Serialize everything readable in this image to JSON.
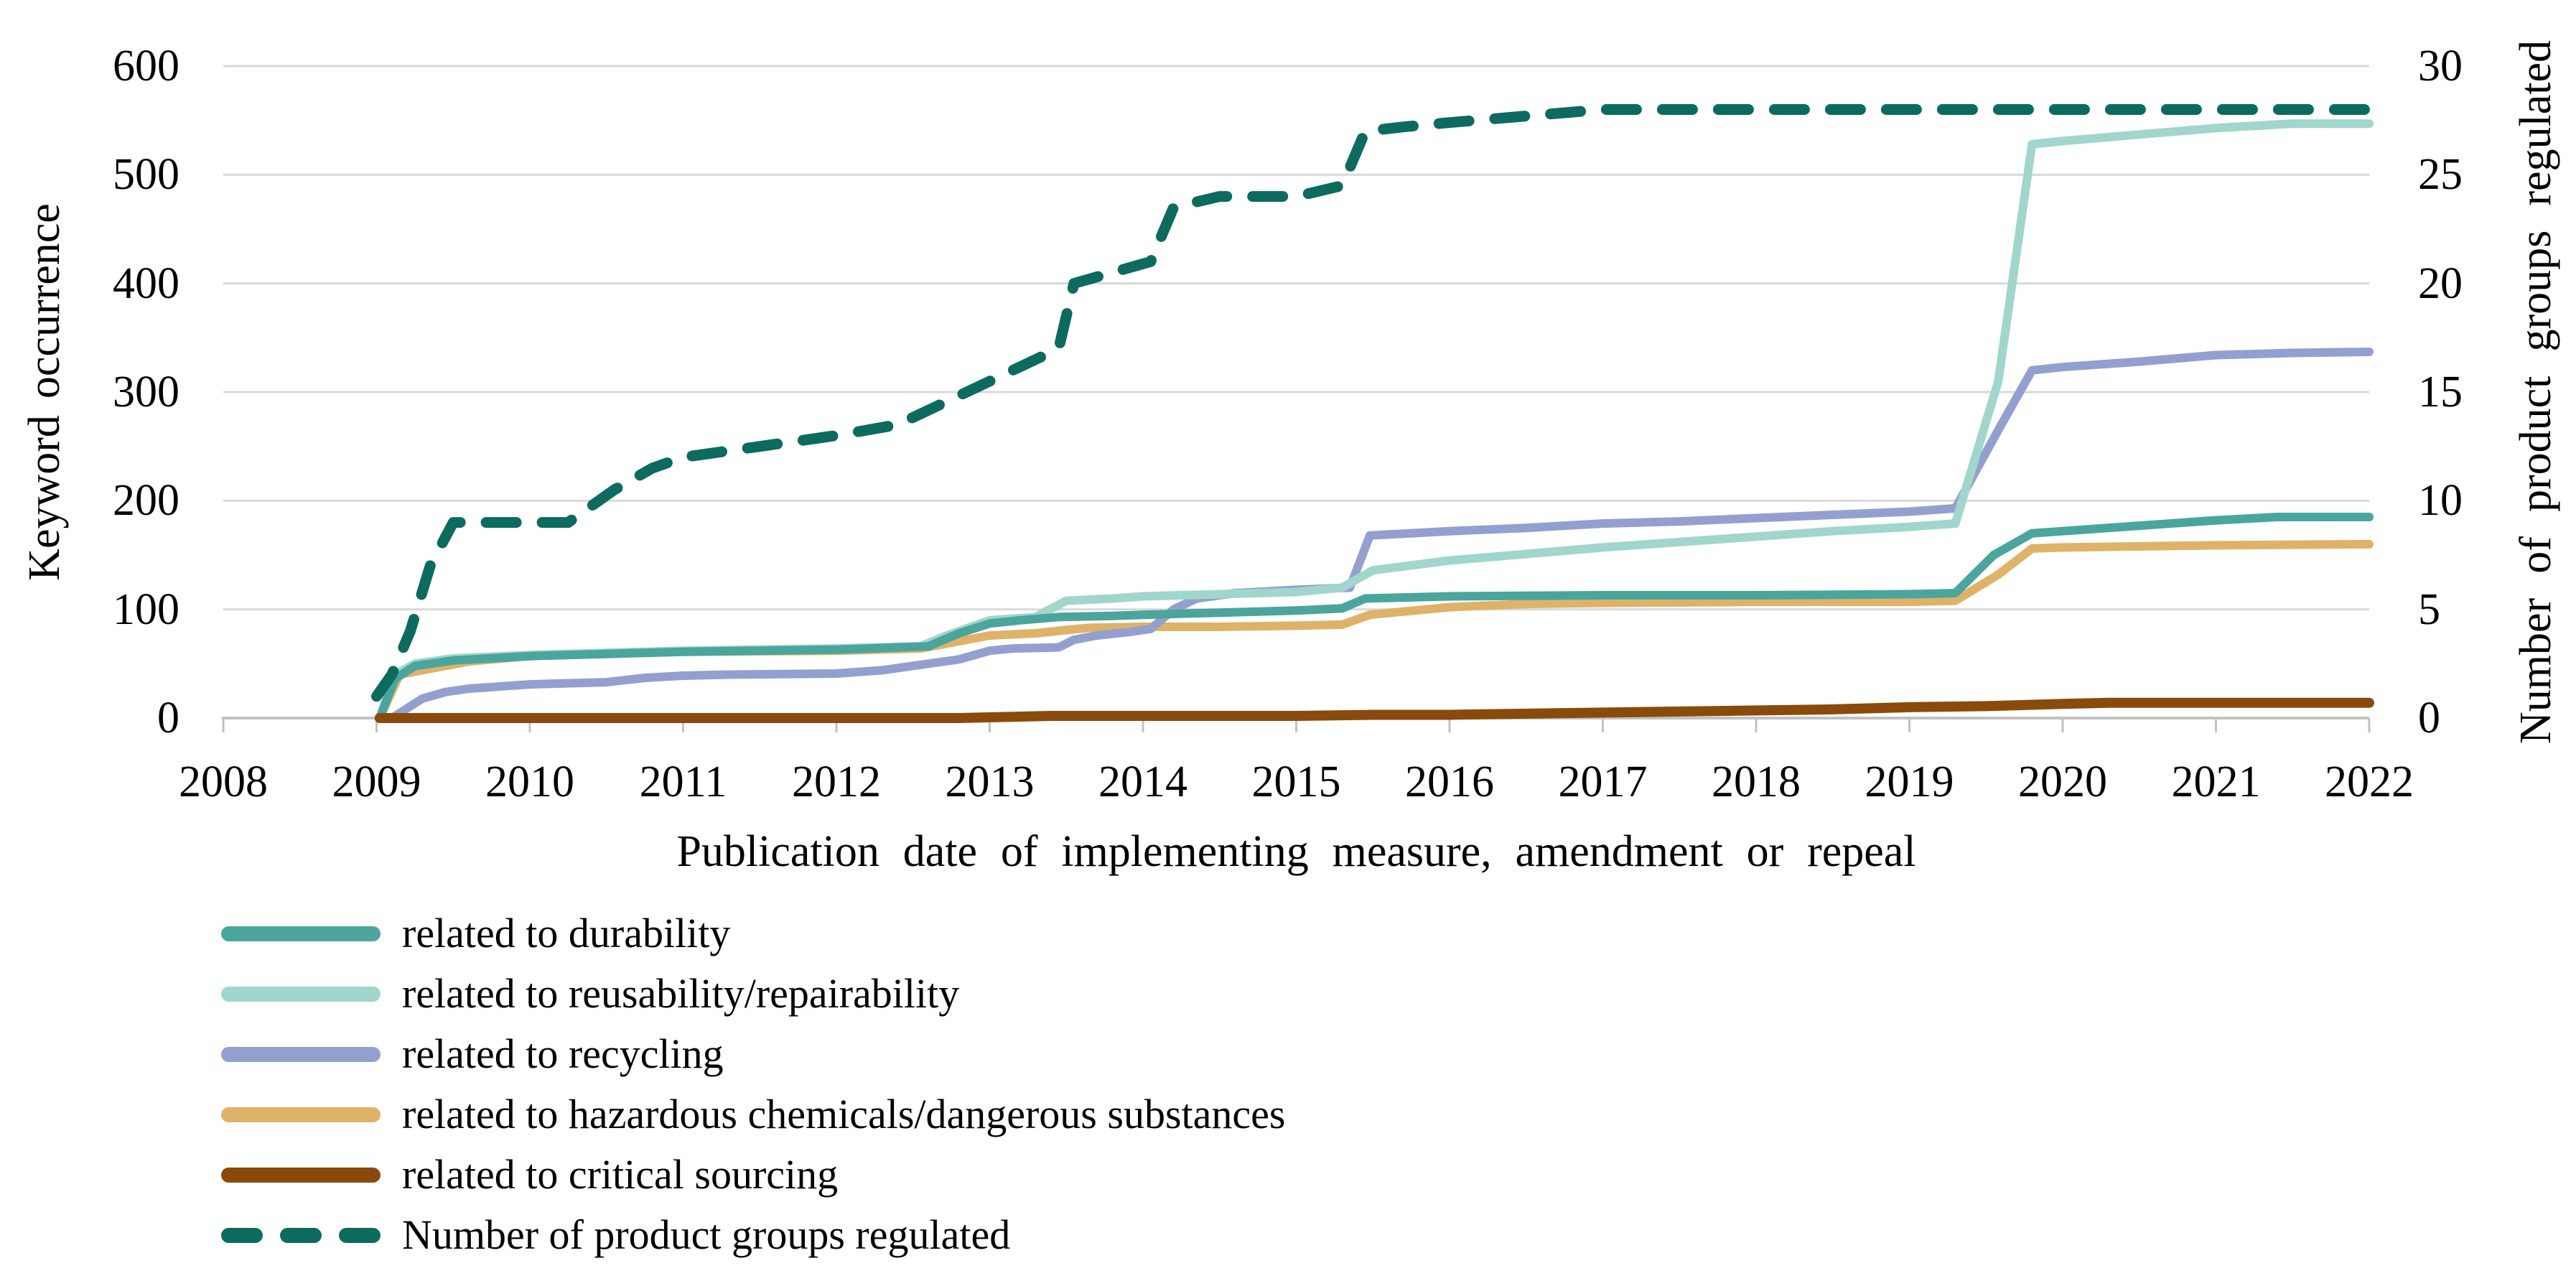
{
  "chart_data": {
    "type": "line",
    "title": "",
    "x_axis": {
      "label": "Publication date of implementing measure, amendment or repeal",
      "ticks": [
        "2008",
        "2009",
        "2010",
        "2011",
        "2012",
        "2013",
        "2014",
        "2015",
        "2016",
        "2017",
        "2018",
        "2019",
        "2020",
        "2021",
        "2022"
      ],
      "range": [
        2008,
        2022
      ]
    },
    "y_axis_left": {
      "label": "Keyword occurrence",
      "ticks": [
        "0",
        "100",
        "200",
        "300",
        "400",
        "500",
        "600"
      ],
      "range": [
        0,
        600
      ]
    },
    "y_axis_right": {
      "label": "Number of product groups regulated",
      "ticks": [
        "0",
        "5",
        "10",
        "15",
        "20",
        "25",
        "30"
      ],
      "range": [
        0,
        30
      ]
    },
    "grid": {
      "gridline_color": "#d9d9d9",
      "axis_line_color": "#c2c2c2",
      "tick_color": "#c2c2c2"
    },
    "legend_position": "bottom-left",
    "series": [
      {
        "name": "related to durability",
        "color": "#4aa59d",
        "axis": "left",
        "style": "solid",
        "points": [
          [
            2009.02,
            0
          ],
          [
            2009.12,
            36
          ],
          [
            2009.25,
            48
          ],
          [
            2009.5,
            53
          ],
          [
            2010,
            57
          ],
          [
            2010.5,
            59
          ],
          [
            2011,
            61
          ],
          [
            2012,
            63
          ],
          [
            2012.6,
            66
          ],
          [
            2012.8,
            78
          ],
          [
            2013.0,
            87
          ],
          [
            2013.2,
            90
          ],
          [
            2013.45,
            93
          ],
          [
            2013.8,
            94
          ],
          [
            2014,
            95
          ],
          [
            2014.5,
            97
          ],
          [
            2015,
            99
          ],
          [
            2015.3,
            101
          ],
          [
            2015.45,
            110
          ],
          [
            2016,
            112
          ],
          [
            2017,
            113
          ],
          [
            2018,
            113
          ],
          [
            2019,
            114
          ],
          [
            2019.3,
            115
          ],
          [
            2019.55,
            150
          ],
          [
            2019.8,
            170
          ],
          [
            2020,
            172
          ],
          [
            2020.5,
            177
          ],
          [
            2021,
            182
          ],
          [
            2021.4,
            185
          ],
          [
            2022,
            185
          ]
        ]
      },
      {
        "name": "related to reusability/repairability",
        "color": "#a0d6cb",
        "axis": "left",
        "style": "solid",
        "points": [
          [
            2009.02,
            0
          ],
          [
            2009.12,
            40
          ],
          [
            2009.25,
            50
          ],
          [
            2009.5,
            55
          ],
          [
            2010,
            58
          ],
          [
            2010.5,
            60
          ],
          [
            2011,
            62
          ],
          [
            2012,
            64
          ],
          [
            2012.55,
            66
          ],
          [
            2012.7,
            75
          ],
          [
            2013.0,
            90
          ],
          [
            2013.3,
            93
          ],
          [
            2013.5,
            108
          ],
          [
            2013.8,
            110
          ],
          [
            2014,
            112
          ],
          [
            2014.5,
            114
          ],
          [
            2015,
            116
          ],
          [
            2015.3,
            120
          ],
          [
            2015.5,
            136
          ],
          [
            2016,
            145
          ],
          [
            2016.5,
            151
          ],
          [
            2017,
            157
          ],
          [
            2017.5,
            162
          ],
          [
            2018,
            167
          ],
          [
            2018.5,
            172
          ],
          [
            2019,
            176
          ],
          [
            2019.3,
            179
          ],
          [
            2019.58,
            310
          ],
          [
            2019.8,
            528
          ],
          [
            2020,
            531
          ],
          [
            2020.5,
            537
          ],
          [
            2021,
            543
          ],
          [
            2021.5,
            547
          ],
          [
            2022,
            547
          ]
        ]
      },
      {
        "name": "related to recycling",
        "color": "#93a0cf",
        "axis": "left",
        "style": "solid",
        "points": [
          [
            2009.1,
            0
          ],
          [
            2009.3,
            18
          ],
          [
            2009.45,
            24
          ],
          [
            2009.6,
            27
          ],
          [
            2010,
            31
          ],
          [
            2010.5,
            33
          ],
          [
            2010.75,
            37
          ],
          [
            2011,
            39
          ],
          [
            2011.3,
            40
          ],
          [
            2012,
            41
          ],
          [
            2012.3,
            44
          ],
          [
            2012.6,
            50
          ],
          [
            2012.8,
            54
          ],
          [
            2013.0,
            62
          ],
          [
            2013.15,
            64
          ],
          [
            2013.45,
            65
          ],
          [
            2013.55,
            72
          ],
          [
            2013.7,
            76
          ],
          [
            2013.9,
            79
          ],
          [
            2014.05,
            82
          ],
          [
            2014.2,
            100
          ],
          [
            2014.35,
            110
          ],
          [
            2014.6,
            115
          ],
          [
            2015,
            118
          ],
          [
            2015.35,
            120
          ],
          [
            2015.48,
            168
          ],
          [
            2016,
            172
          ],
          [
            2016.5,
            175
          ],
          [
            2017,
            179
          ],
          [
            2017.5,
            181
          ],
          [
            2018,
            184
          ],
          [
            2018.5,
            187
          ],
          [
            2019,
            190
          ],
          [
            2019.3,
            193
          ],
          [
            2019.58,
            265
          ],
          [
            2019.8,
            320
          ],
          [
            2020,
            323
          ],
          [
            2020.5,
            328
          ],
          [
            2021,
            334
          ],
          [
            2021.5,
            336
          ],
          [
            2022,
            337
          ]
        ]
      },
      {
        "name": "related to hazardous chemicals/dangerous substances",
        "color": "#dfb269",
        "axis": "left",
        "style": "solid",
        "points": [
          [
            2009.02,
            0
          ],
          [
            2009.15,
            40
          ],
          [
            2009.3,
            44
          ],
          [
            2009.6,
            52
          ],
          [
            2010,
            57
          ],
          [
            2010.5,
            60
          ],
          [
            2011,
            61
          ],
          [
            2012,
            62
          ],
          [
            2012.55,
            64
          ],
          [
            2012.7,
            68
          ],
          [
            2013.0,
            76
          ],
          [
            2013.3,
            78
          ],
          [
            2013.5,
            81
          ],
          [
            2013.65,
            83
          ],
          [
            2014,
            84
          ],
          [
            2014.5,
            84
          ],
          [
            2015,
            85
          ],
          [
            2015.3,
            86
          ],
          [
            2015.48,
            95
          ],
          [
            2016,
            102
          ],
          [
            2016.5,
            105
          ],
          [
            2017,
            106
          ],
          [
            2018,
            107
          ],
          [
            2019,
            107
          ],
          [
            2019.3,
            108
          ],
          [
            2019.58,
            132
          ],
          [
            2019.8,
            156
          ],
          [
            2020,
            157
          ],
          [
            2020.5,
            158
          ],
          [
            2021,
            159
          ],
          [
            2022,
            160
          ]
        ]
      },
      {
        "name": "related to critical sourcing",
        "color": "#8a4a0c",
        "axis": "left",
        "style": "solid",
        "points": [
          [
            2009.02,
            0
          ],
          [
            2012.8,
            0
          ],
          [
            2013.1,
            1
          ],
          [
            2013.4,
            2
          ],
          [
            2014,
            2
          ],
          [
            2015,
            2
          ],
          [
            2015.5,
            3
          ],
          [
            2016,
            3
          ],
          [
            2016.5,
            4
          ],
          [
            2017,
            5
          ],
          [
            2017.5,
            6
          ],
          [
            2018,
            7
          ],
          [
            2018.5,
            8
          ],
          [
            2019,
            10
          ],
          [
            2019.5,
            11
          ],
          [
            2020,
            13
          ],
          [
            2020.3,
            14
          ],
          [
            2021,
            14
          ],
          [
            2022,
            14
          ]
        ]
      },
      {
        "name": "Number of product groups regulated",
        "color": "#0c6b5e",
        "axis": "right",
        "style": "dashed",
        "points": [
          [
            2009.0,
            1
          ],
          [
            2009.1,
            2
          ],
          [
            2009.22,
            4
          ],
          [
            2009.35,
            7
          ],
          [
            2009.5,
            9
          ],
          [
            2010.25,
            9
          ],
          [
            2010.55,
            10.5
          ],
          [
            2010.8,
            11.5
          ],
          [
            2011,
            12
          ],
          [
            2011.5,
            12.5
          ],
          [
            2012,
            13
          ],
          [
            2012.4,
            13.5
          ],
          [
            2012.7,
            14.5
          ],
          [
            2013,
            15.5
          ],
          [
            2013.3,
            16.5
          ],
          [
            2013.45,
            17
          ],
          [
            2013.55,
            20
          ],
          [
            2013.8,
            20.5
          ],
          [
            2014.05,
            21
          ],
          [
            2014.2,
            23.5
          ],
          [
            2014.5,
            24
          ],
          [
            2015,
            24
          ],
          [
            2015.3,
            24.5
          ],
          [
            2015.45,
            27
          ],
          [
            2015.7,
            27.2
          ],
          [
            2016,
            27.4
          ],
          [
            2016.5,
            27.7
          ],
          [
            2017,
            28
          ],
          [
            2018,
            28
          ],
          [
            2019,
            28
          ],
          [
            2020,
            28
          ],
          [
            2021,
            28
          ],
          [
            2022,
            28
          ]
        ]
      }
    ]
  }
}
